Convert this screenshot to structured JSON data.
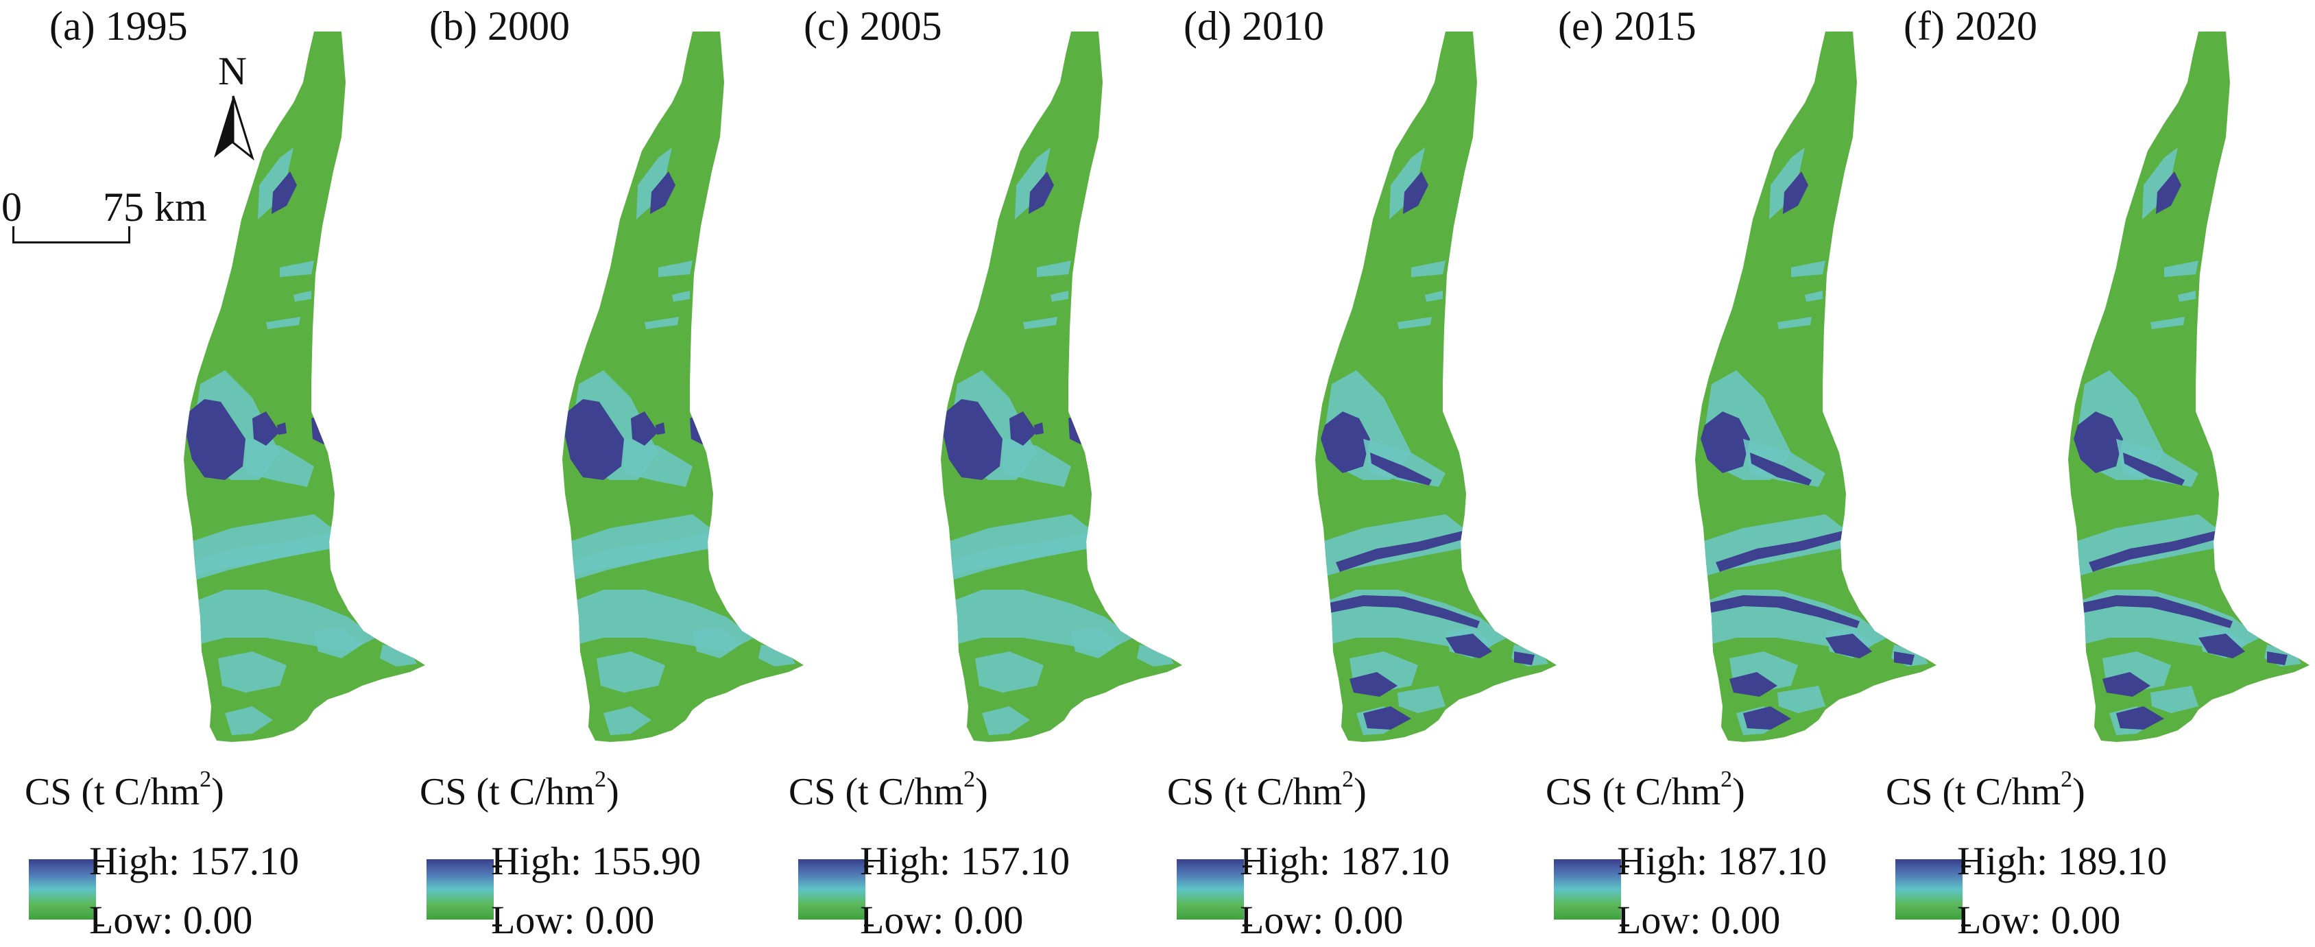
{
  "panels": [
    {
      "title": "(a) 1995",
      "legend_title": "CS (t C/hm",
      "legend_title_sup": "2",
      "legend_title_close": ")",
      "high": "High: 157.10",
      "low": "Low: 0.00",
      "style": "v1"
    },
    {
      "title": "(b) 2000",
      "legend_title": "CS (t C/hm",
      "legend_title_sup": "2",
      "legend_title_close": ")",
      "high": "High: 155.90",
      "low": "Low: 0.00",
      "style": "v1"
    },
    {
      "title": "(c) 2005",
      "legend_title": "CS (t C/hm",
      "legend_title_sup": "2",
      "legend_title_close": ")",
      "high": "High: 157.10",
      "low": "Low: 0.00",
      "style": "v1"
    },
    {
      "title": "(d) 2010",
      "legend_title": "CS (t C/hm",
      "legend_title_sup": "2",
      "legend_title_close": ")",
      "high": "High: 187.10",
      "low": "Low: 0.00",
      "style": "v2"
    },
    {
      "title": "(e) 2015",
      "legend_title": "CS (t C/hm",
      "legend_title_sup": "2",
      "legend_title_close": ")",
      "high": "High: 187.10",
      "low": "Low: 0.00",
      "style": "v2"
    },
    {
      "title": "(f) 2020",
      "legend_title": "CS (t C/hm",
      "legend_title_sup": "2",
      "legend_title_close": ")",
      "high": "High: 189.10",
      "low": "Low: 0.00",
      "style": "v2"
    }
  ],
  "north_label": "N",
  "scale": {
    "zero": "0",
    "max": "75 km"
  },
  "colors": {
    "low": "#5bb042",
    "mid": "#6cc7c0",
    "high": "#3d418f",
    "ramp": [
      "#3a3f8d",
      "#4f79b6",
      "#5ec4c6",
      "#5cb85a",
      "#3fa23e"
    ]
  }
}
